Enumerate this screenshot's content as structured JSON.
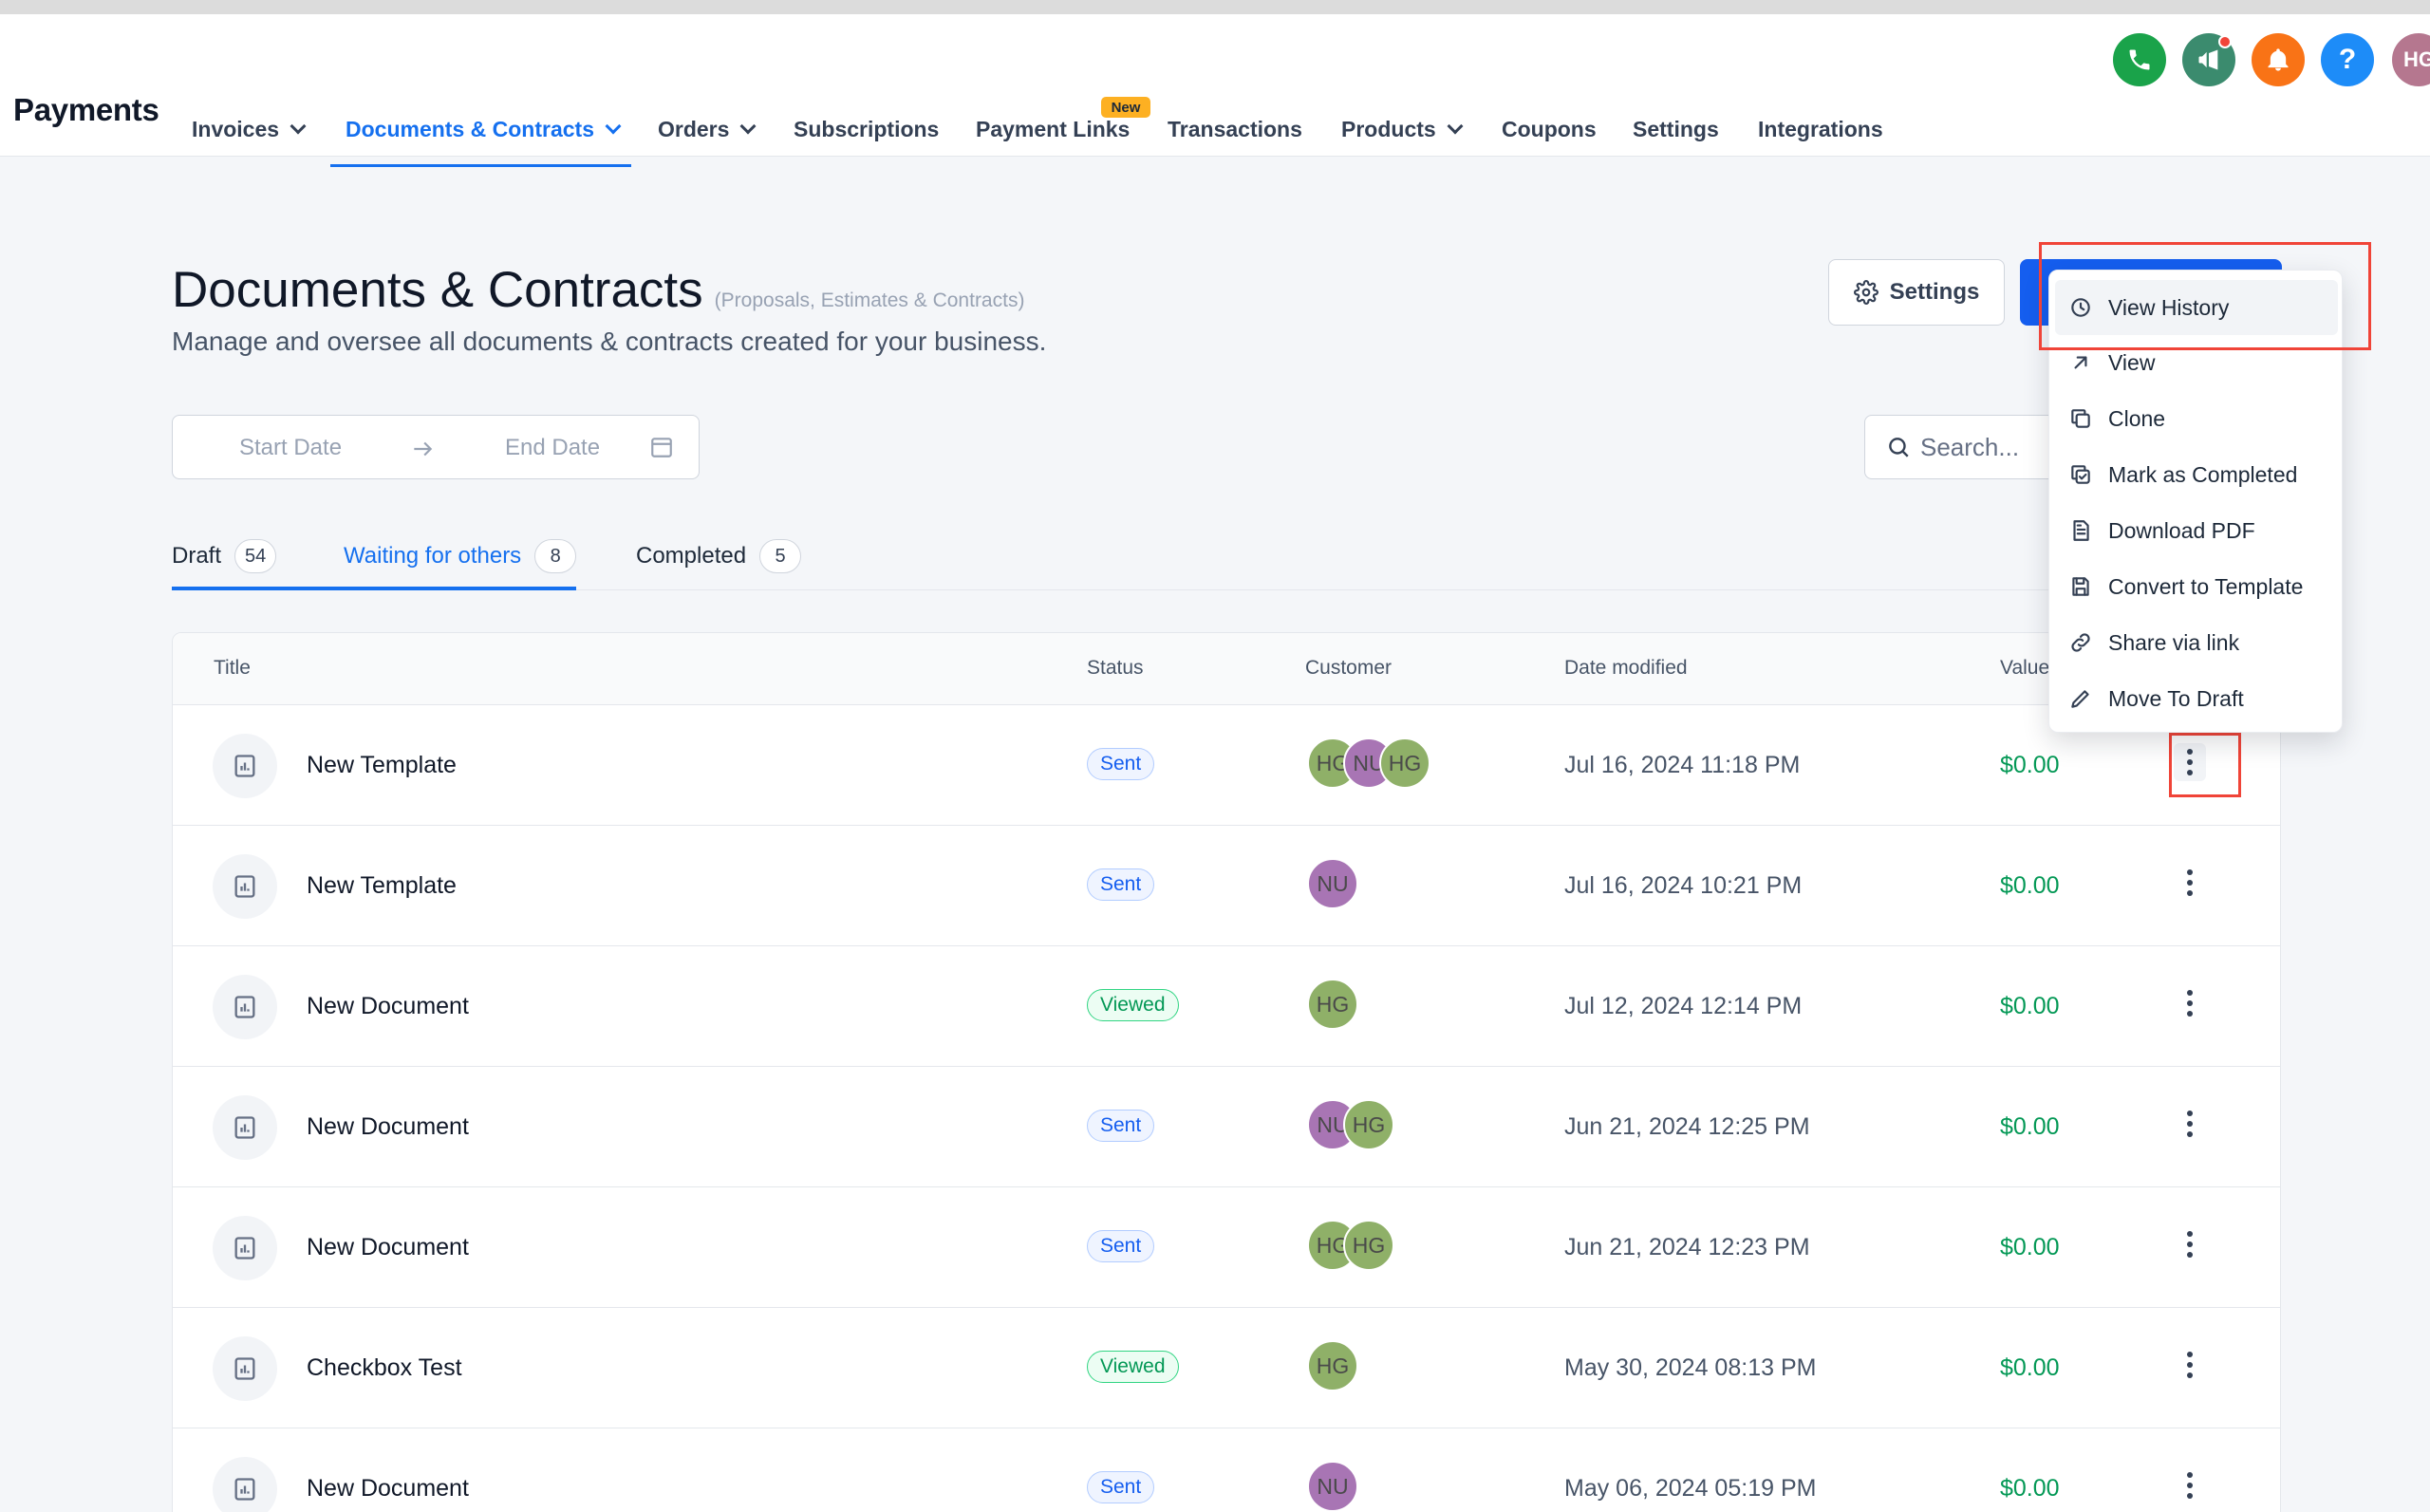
{
  "app": {
    "title": "Payments"
  },
  "nav": {
    "items": [
      {
        "label": "Invoices",
        "dropdown": true
      },
      {
        "label": "Documents & Contracts",
        "dropdown": true,
        "active": true
      },
      {
        "label": "Orders",
        "dropdown": true
      },
      {
        "label": "Subscriptions"
      },
      {
        "label": "Payment Links",
        "badge": "New"
      },
      {
        "label": "Transactions"
      },
      {
        "label": "Products",
        "dropdown": true
      },
      {
        "label": "Coupons"
      },
      {
        "label": "Settings"
      },
      {
        "label": "Integrations"
      }
    ]
  },
  "topbar": {
    "icons": [
      "phone-icon",
      "megaphone-icon",
      "bell-icon",
      "help-icon"
    ],
    "colors": {
      "phone": "#1aa34a",
      "megaphone": "#3b8b6e",
      "bell": "#f97316",
      "help": "#1d8cf8"
    },
    "user_initials": "HG"
  },
  "page": {
    "title": "Documents & Contracts",
    "title_note": "(Proposals, Estimates & Contracts)",
    "description": "Manage and oversee all documents & contracts created for your business."
  },
  "filters": {
    "start_date_placeholder": "Start Date",
    "end_date_placeholder": "End Date",
    "search_placeholder": "Search..."
  },
  "actions": {
    "settings_label": "Settings"
  },
  "tabs": [
    {
      "label": "Draft",
      "count": "54"
    },
    {
      "label": "Waiting for others",
      "count": "8",
      "active": true
    },
    {
      "label": "Completed",
      "count": "5"
    }
  ],
  "table": {
    "columns": [
      "Title",
      "Status",
      "Customer",
      "Date modified",
      "Value"
    ],
    "rows": [
      {
        "title": "New Template",
        "status": "Sent",
        "customers": [
          "HG",
          "NU",
          "HG"
        ],
        "date": "Jul 16, 2024 11:18 PM",
        "value": "$0.00"
      },
      {
        "title": "New Template",
        "status": "Sent",
        "customers": [
          "NU"
        ],
        "date": "Jul 16, 2024 10:21 PM",
        "value": "$0.00"
      },
      {
        "title": "New Document",
        "status": "Viewed",
        "customers": [
          "HG"
        ],
        "date": "Jul 12, 2024 12:14 PM",
        "value": "$0.00"
      },
      {
        "title": "New Document",
        "status": "Sent",
        "customers": [
          "NU",
          "HG"
        ],
        "date": "Jun 21, 2024 12:25 PM",
        "value": "$0.00"
      },
      {
        "title": "New Document",
        "status": "Sent",
        "customers": [
          "HG",
          "HG"
        ],
        "date": "Jun 21, 2024 12:23 PM",
        "value": "$0.00"
      },
      {
        "title": "Checkbox Test",
        "status": "Viewed",
        "customers": [
          "HG"
        ],
        "date": "May 30, 2024 08:13 PM",
        "value": "$0.00"
      },
      {
        "title": "New Document",
        "status": "Sent",
        "customers": [
          "NU"
        ],
        "date": "May 06, 2024 05:19 PM",
        "value": "$0.00"
      }
    ]
  },
  "context_menu": {
    "items": [
      {
        "label": "View History",
        "icon": "history-icon"
      },
      {
        "label": "View",
        "icon": "arrow-up-right-icon"
      },
      {
        "label": "Clone",
        "icon": "copy-icon"
      },
      {
        "label": "Mark as Completed",
        "icon": "check-copy-icon"
      },
      {
        "label": "Download PDF",
        "icon": "file-text-icon"
      },
      {
        "label": "Convert to Template",
        "icon": "save-icon"
      },
      {
        "label": "Share via link",
        "icon": "link-icon"
      },
      {
        "label": "Move To Draft",
        "icon": "pencil-icon"
      }
    ]
  },
  "colors": {
    "accent": "#1570ef",
    "value_green": "#039855",
    "highlight_red": "#f04438",
    "avatar_HG": "#8fb068",
    "avatar_NU": "#a875b4"
  }
}
